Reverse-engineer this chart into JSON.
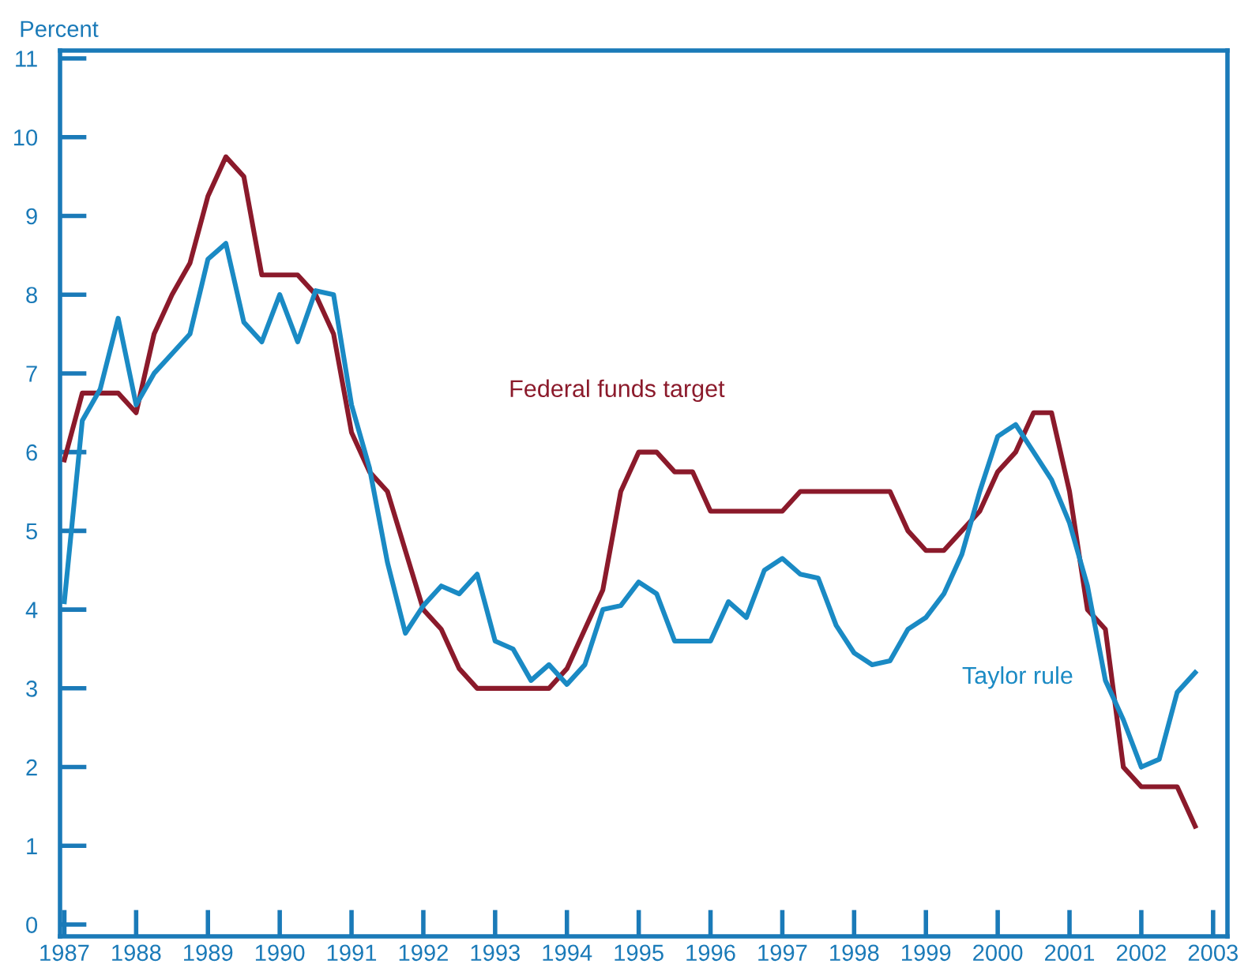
{
  "chart_data": {
    "type": "line",
    "ylabel": "Percent",
    "x": [
      1987.0,
      1987.25,
      1987.5,
      1987.75,
      1988.0,
      1988.25,
      1988.5,
      1988.75,
      1989.0,
      1989.25,
      1989.5,
      1989.75,
      1990.0,
      1990.25,
      1990.5,
      1990.75,
      1991.0,
      1991.25,
      1991.5,
      1991.75,
      1992.0,
      1992.25,
      1992.5,
      1992.75,
      1993.0,
      1993.25,
      1993.5,
      1993.75,
      1994.0,
      1994.25,
      1994.5,
      1994.75,
      1995.0,
      1995.25,
      1995.5,
      1995.75,
      1996.0,
      1996.25,
      1996.5,
      1996.75,
      1997.0,
      1997.25,
      1997.5,
      1997.75,
      1998.0,
      1998.25,
      1998.5,
      1998.75,
      1999.0,
      1999.25,
      1999.5,
      1999.75,
      2000.0,
      2000.25,
      2000.5,
      2000.75,
      2001.0,
      2001.25,
      2001.5,
      2001.75,
      2002.0,
      2002.25,
      2002.5,
      2002.75
    ],
    "series": [
      {
        "name": "Federal funds target",
        "color": "#8b1a2b",
        "values": [
          5.9,
          6.75,
          6.75,
          6.75,
          6.5,
          7.5,
          8.0,
          8.4,
          9.25,
          9.75,
          9.5,
          8.25,
          8.25,
          8.25,
          8.0,
          7.5,
          6.25,
          5.75,
          5.5,
          4.75,
          4.0,
          3.75,
          3.25,
          3.0,
          3.0,
          3.0,
          3.0,
          3.0,
          3.25,
          3.75,
          4.25,
          5.5,
          6.0,
          6.0,
          5.75,
          5.75,
          5.25,
          5.25,
          5.25,
          5.25,
          5.25,
          5.5,
          5.5,
          5.5,
          5.5,
          5.5,
          5.5,
          5.0,
          4.75,
          4.75,
          5.0,
          5.25,
          5.75,
          6.0,
          6.5,
          6.5,
          5.5,
          4.0,
          3.75,
          2.0,
          1.75,
          1.75,
          1.75,
          1.25
        ]
      },
      {
        "name": "Taylor rule",
        "color": "#1a8ac4",
        "values": [
          4.1,
          6.4,
          6.8,
          7.7,
          6.6,
          7.0,
          7.25,
          7.5,
          8.45,
          8.65,
          7.65,
          7.4,
          8.0,
          7.4,
          8.05,
          8.0,
          6.6,
          5.8,
          4.6,
          3.7,
          4.05,
          4.3,
          4.2,
          4.45,
          3.6,
          3.5,
          3.1,
          3.3,
          3.05,
          3.3,
          4.0,
          4.05,
          4.35,
          4.2,
          3.6,
          3.6,
          3.6,
          4.1,
          3.9,
          4.5,
          4.65,
          4.45,
          4.4,
          3.8,
          3.45,
          3.3,
          3.35,
          3.75,
          3.9,
          4.2,
          4.7,
          5.5,
          6.2,
          6.35,
          6.0,
          5.65,
          5.1,
          4.3,
          3.1,
          2.6,
          2.0,
          2.1,
          2.95,
          3.2
        ]
      }
    ],
    "xlim": [
      1986.94,
      2003.2
    ],
    "xticks": [
      1987,
      1988,
      1989,
      1990,
      1991,
      1992,
      1993,
      1994,
      1995,
      1996,
      1997,
      1998,
      1999,
      2000,
      2001,
      2002,
      2003
    ],
    "ylim": [
      -0.15,
      11.1
    ],
    "yticks": [
      0,
      1,
      2,
      3,
      4,
      5,
      6,
      7,
      8,
      9,
      10,
      11
    ],
    "legend": false,
    "grid": false,
    "marker": "none",
    "line_style": "solid"
  }
}
